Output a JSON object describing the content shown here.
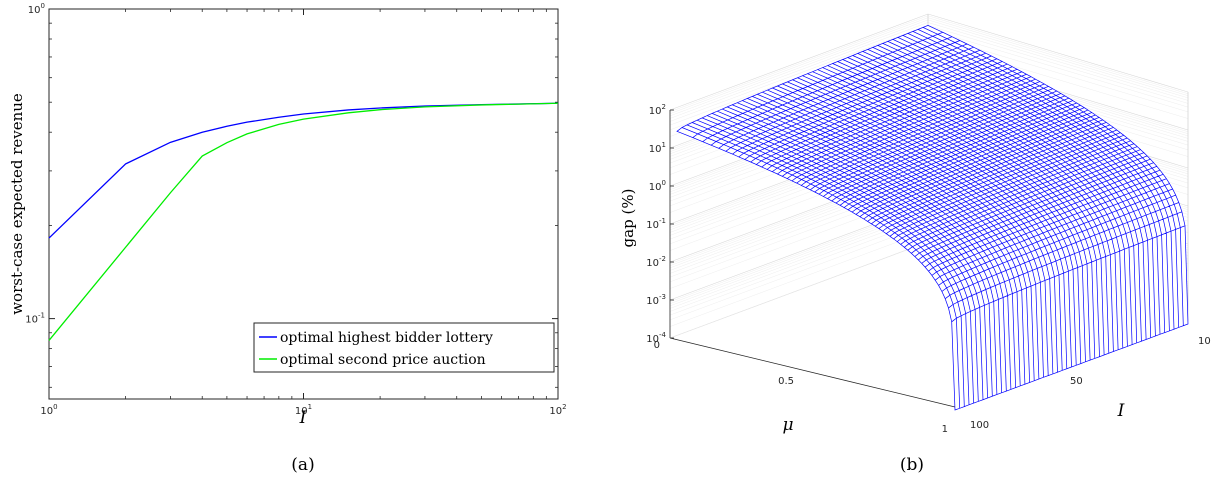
{
  "chart_data": [
    {
      "type": "line",
      "panel_label": "(a)",
      "xlabel": "I",
      "ylabel": "worst-case expected revenue",
      "xscale": "log",
      "yscale": "log",
      "xlim": [
        1,
        100
      ],
      "ylim": [
        0.055,
        1
      ],
      "xticks": [
        1,
        10,
        100
      ],
      "xtick_labels": [
        {
          "base": "10",
          "exp": "0"
        },
        {
          "base": "10",
          "exp": "1"
        },
        {
          "base": "10",
          "exp": "2"
        }
      ],
      "yticks": [
        0.1,
        1
      ],
      "ytick_labels": [
        {
          "base": "10",
          "exp": "-1"
        },
        {
          "base": "10",
          "exp": "0"
        }
      ],
      "legend_position": "bottom-right",
      "series": [
        {
          "name": "optimal highest bidder lottery",
          "color": "#0000ff",
          "x": [
            1,
            2,
            3,
            4,
            5,
            6,
            8,
            10,
            15,
            20,
            30,
            50,
            100
          ],
          "y": [
            0.182,
            0.316,
            0.371,
            0.4,
            0.418,
            0.431,
            0.447,
            0.458,
            0.472,
            0.479,
            0.486,
            0.491,
            0.496
          ]
        },
        {
          "name": "optimal second price auction",
          "color": "#00ee00",
          "x": [
            1,
            2,
            3,
            4,
            5,
            6,
            8,
            10,
            15,
            20,
            30,
            50,
            100
          ],
          "y": [
            0.085,
            0.17,
            0.255,
            0.335,
            0.37,
            0.395,
            0.424,
            0.441,
            0.462,
            0.473,
            0.483,
            0.49,
            0.496
          ]
        }
      ]
    },
    {
      "type": "surface",
      "panel_label": "(b)",
      "xlabel": "μ",
      "ylabel": "I",
      "zlabel": "gap (%)",
      "zscale": "log",
      "zlim": [
        0.0001,
        100
      ],
      "mu_ticks": [
        "0",
        "0.5",
        "1"
      ],
      "i_ticks": [
        "10",
        "50",
        "100"
      ],
      "z_ticks": [
        {
          "base": "10",
          "exp": "2"
        },
        {
          "base": "10",
          "exp": "1"
        },
        {
          "base": "10",
          "exp": "0"
        },
        {
          "base": "10",
          "exp": "-1"
        },
        {
          "base": "10",
          "exp": "-2"
        },
        {
          "base": "10",
          "exp": "-3"
        },
        {
          "base": "10",
          "exp": "-4"
        }
      ],
      "mesh_color": "#0000ff",
      "mu_range": [
        0,
        1
      ],
      "i_range": [
        2,
        100
      ],
      "description_of_surface": "gap is largest (about 10^2 %) near mu = 0 and drops sharply toward 10^-4 % as mu approaches 1; nearly independent of I"
    }
  ]
}
